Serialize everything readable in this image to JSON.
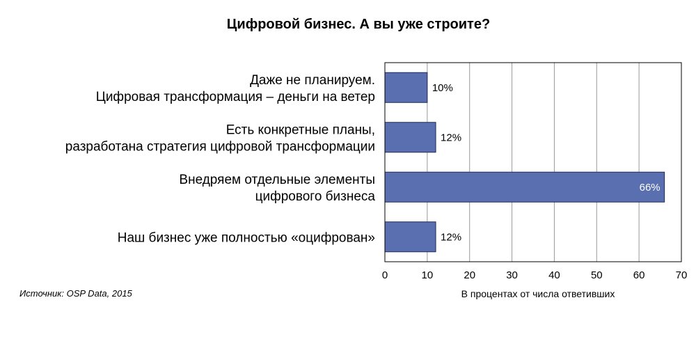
{
  "chart_data": {
    "type": "bar",
    "orientation": "horizontal",
    "title": "Цифровой бизнес. А вы уже строите?",
    "categories": [
      [
        "Даже не планируем.",
        "Цифровая трансформация – деньги на ветер"
      ],
      [
        "Есть конкретные планы,",
        "разработана стратегия цифровой трансформации"
      ],
      [
        "Внедряем отдельные элементы",
        "цифрового бизнеса"
      ],
      [
        "Наш бизнес уже полностью «оцифрован»"
      ]
    ],
    "values": [
      10,
      12,
      66,
      12
    ],
    "value_labels": [
      "10%",
      "12%",
      "66%",
      "12%"
    ],
    "xlabel": "В процентах от числа ответивших",
    "xlim": [
      0,
      70
    ],
    "xticks": [
      0,
      10,
      20,
      30,
      40,
      50,
      60,
      70
    ],
    "grid": true,
    "bar_color": "#5a6fb0",
    "source": "Источник: OSP Data, 2015"
  }
}
